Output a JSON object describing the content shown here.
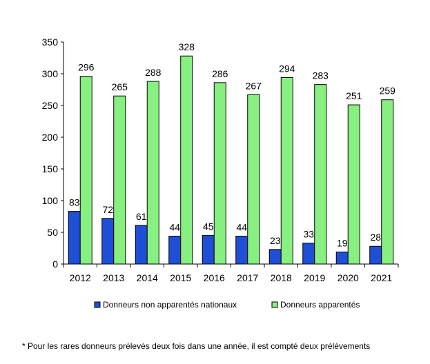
{
  "chart_data": {
    "type": "bar",
    "categories": [
      "2012",
      "2013",
      "2014",
      "2015",
      "2016",
      "2017",
      "2018",
      "2019",
      "2020",
      "2021"
    ],
    "series": [
      {
        "name": "Donneurs non apparentés nationaux",
        "color": "#1f4fd6",
        "values": [
          83,
          72,
          61,
          44,
          45,
          44,
          23,
          33,
          19,
          28
        ]
      },
      {
        "name": "Donneurs apparentés",
        "color": "#88f080",
        "values": [
          296,
          265,
          288,
          328,
          286,
          267,
          294,
          283,
          251,
          259
        ]
      }
    ],
    "ylim": [
      0,
      350
    ],
    "yticks": [
      0,
      50,
      100,
      150,
      200,
      250,
      300,
      350
    ],
    "grid": false,
    "legend": "bottom",
    "footnote": "* Pour les rares donneurs prélevés deux fois dans une année, il est compté deux prélèvements"
  }
}
